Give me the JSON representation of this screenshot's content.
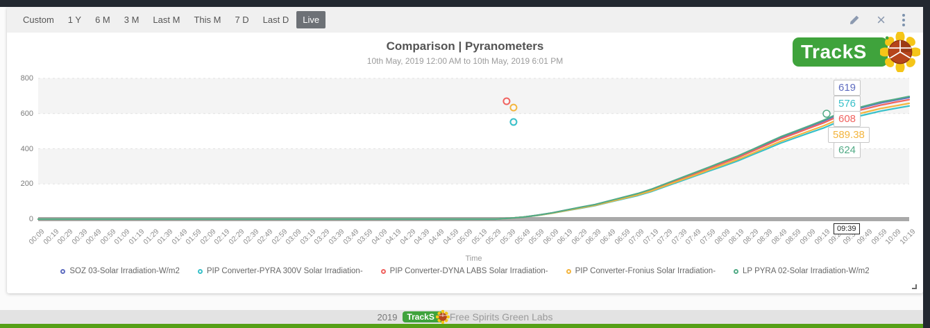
{
  "toolbar": {
    "ranges": [
      {
        "label": "Custom"
      },
      {
        "label": "1 Y"
      },
      {
        "label": "6 M"
      },
      {
        "label": "3 M"
      },
      {
        "label": "Last M"
      },
      {
        "label": "This M"
      },
      {
        "label": "7 D"
      },
      {
        "label": "Last D"
      },
      {
        "label": "Live",
        "active": true
      }
    ]
  },
  "header": {
    "title": "Comparison | Pyranometers",
    "subtitle": "10th May, 2019 12:00 AM to 10th May, 2019 6:01 PM"
  },
  "logo": {
    "text": "TrackS",
    "brand_green": "#3fa33c"
  },
  "chart_data": {
    "type": "line",
    "title": "Comparison | Pyranometers",
    "xlabel": "Time",
    "ylabel": "",
    "ylim": [
      0,
      800
    ],
    "y_ticks": [
      0,
      200,
      400,
      600,
      800
    ],
    "grid": "alternating-horizontal-bands",
    "legend_position": "bottom",
    "x": [
      "00:09",
      "00:19",
      "00:29",
      "00:39",
      "00:49",
      "00:59",
      "01:09",
      "01:19",
      "01:29",
      "01:39",
      "01:49",
      "01:59",
      "02:09",
      "02:19",
      "02:29",
      "02:39",
      "02:49",
      "02:59",
      "03:09",
      "03:19",
      "03:29",
      "03:39",
      "03:49",
      "03:59",
      "04:09",
      "04:19",
      "04:29",
      "04:39",
      "04:49",
      "04:59",
      "05:09",
      "05:19",
      "05:29",
      "05:39",
      "05:49",
      "05:59",
      "06:09",
      "06:19",
      "06:29",
      "06:39",
      "06:49",
      "06:59",
      "07:09",
      "07:19",
      "07:29",
      "07:39",
      "07:49",
      "07:59",
      "08:09",
      "08:19",
      "08:29",
      "08:39",
      "08:49",
      "08:59",
      "09:09",
      "09:19",
      "09:29",
      "09:39",
      "09:49",
      "09:59",
      "10:09",
      "10:19"
    ],
    "series": [
      {
        "name": "SOZ 03-Solar Irradiation-W/m2",
        "color": "#5e6cc0",
        "values": [
          0,
          0,
          0,
          0,
          0,
          0,
          0,
          0,
          0,
          0,
          0,
          0,
          0,
          0,
          0,
          0,
          0,
          0,
          0,
          0,
          0,
          0,
          0,
          0,
          0,
          0,
          0,
          0,
          0,
          0,
          0,
          0,
          0,
          5,
          12,
          23,
          36,
          52,
          67,
          83,
          103,
          124,
          144,
          170,
          201,
          232,
          263,
          294,
          325,
          356,
          392,
          428,
          464,
          495,
          526,
          557,
          593,
          619,
          640,
          660,
          676,
          691
        ]
      },
      {
        "name": "PIP Converter-PYRA 300V Solar Irradiation-",
        "color": "#38c0c9",
        "values": [
          0,
          0,
          0,
          0,
          0,
          0,
          0,
          0,
          0,
          0,
          0,
          0,
          0,
          0,
          0,
          0,
          0,
          0,
          0,
          0,
          0,
          0,
          0,
          0,
          0,
          0,
          0,
          0,
          0,
          0,
          0,
          0,
          0,
          5,
          12,
          21,
          34,
          48,
          62,
          77,
          96,
          115,
          134,
          158,
          187,
          216,
          245,
          274,
          302,
          331,
          365,
          398,
          432,
          461,
          490,
          518,
          552,
          576,
          595,
          614,
          629,
          643
        ]
      },
      {
        "name": "PIP Converter-DYNA LABS Solar Irradiation-",
        "color": "#f0625f",
        "values": [
          0,
          0,
          0,
          0,
          0,
          0,
          0,
          0,
          0,
          0,
          0,
          0,
          0,
          0,
          0,
          0,
          0,
          0,
          0,
          0,
          0,
          0,
          0,
          0,
          0,
          0,
          0,
          0,
          0,
          0,
          0,
          0,
          0,
          5,
          12,
          22,
          35,
          51,
          66,
          81,
          101,
          122,
          142,
          167,
          198,
          228,
          258,
          289,
          319,
          350,
          385,
          420,
          456,
          486,
          517,
          547,
          583,
          608,
          628,
          648,
          664,
          679
        ]
      },
      {
        "name": "PIP Converter-Fronius Solar Irradiation-",
        "color": "#f3b53e",
        "values": [
          0,
          0,
          0,
          0,
          0,
          0,
          0,
          0,
          0,
          0,
          0,
          0,
          0,
          0,
          0,
          0,
          0,
          0,
          0,
          0,
          0,
          0,
          0,
          0,
          0,
          0,
          0,
          0,
          0,
          0,
          0,
          0,
          0,
          5,
          12,
          22,
          34,
          49,
          64,
          79,
          98,
          118,
          138,
          162,
          192,
          221,
          250,
          280,
          309,
          339,
          373,
          408,
          442,
          471,
          501,
          530,
          565,
          589.38,
          609,
          629,
          643,
          658
        ]
      },
      {
        "name": "LP PYRA 02-Solar Irradiation-W/m2",
        "color": "#52ab86",
        "values": [
          0,
          0,
          0,
          0,
          0,
          0,
          0,
          0,
          0,
          0,
          0,
          0,
          0,
          0,
          0,
          0,
          0,
          0,
          0,
          0,
          0,
          0,
          0,
          0,
          0,
          0,
          0,
          0,
          0,
          0,
          0,
          0,
          0,
          5,
          12,
          23,
          36,
          52,
          68,
          83,
          104,
          125,
          146,
          172,
          203,
          234,
          265,
          296,
          328,
          359,
          395,
          432,
          468,
          499,
          530,
          562,
          598,
          624,
          645,
          666,
          681,
          697
        ]
      }
    ],
    "outliers": [
      {
        "series_index": 2,
        "time": "05:39",
        "value": 670
      },
      {
        "series_index": 3,
        "time": "05:39",
        "value": 634
      },
      {
        "series_index": 1,
        "time": "05:39",
        "value": 552
      }
    ]
  },
  "cursor": {
    "time": "09:39",
    "values": [
      {
        "series": "SOZ 03-Solar Irradiation-W/m2",
        "value": "619"
      },
      {
        "series": "PIP Converter-PYRA 300V Solar Irradiation-",
        "value": "576"
      },
      {
        "series": "PIP Converter-DYNA LABS Solar Irradiation-",
        "value": "608"
      },
      {
        "series": "PIP Converter-Fronius Solar Irradiation-",
        "value": "589.38"
      },
      {
        "series": "LP PYRA 02-Solar Irradiation-W/m2",
        "value": "624"
      }
    ]
  },
  "footer": {
    "year": "2019",
    "logo_text": "TrackS",
    "text": "Free Spirits Green Labs",
    "bar_green": "#55a017"
  }
}
